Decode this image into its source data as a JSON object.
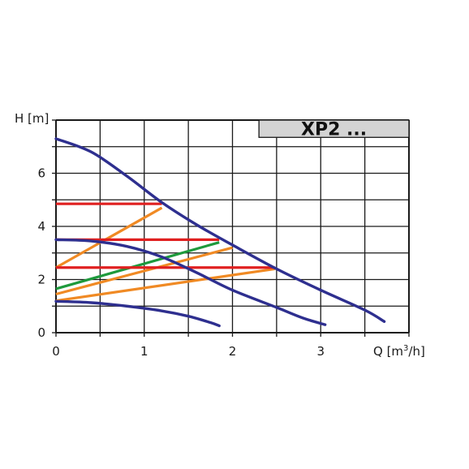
{
  "chart_data": {
    "type": "line",
    "title": "XP2 ...",
    "xlabel_prefix": "Q [m",
    "xlabel_sup": "3",
    "xlabel_suffix": "/h]",
    "ylabel": "H [m]",
    "xlim": [
      0,
      4
    ],
    "ylim": [
      0,
      8
    ],
    "x_grid_step": 0.5,
    "y_grid_step": 1,
    "grid": true,
    "x_ticks": [
      {
        "value": 0,
        "label": "0"
      },
      {
        "value": 1,
        "label": "1"
      },
      {
        "value": 2,
        "label": "2"
      },
      {
        "value": 3,
        "label": "3"
      }
    ],
    "y_ticks": [
      {
        "value": 0,
        "label": "0"
      },
      {
        "value": 2,
        "label": "2"
      },
      {
        "value": 4,
        "label": "4"
      },
      {
        "value": 6,
        "label": "6"
      }
    ],
    "colors": {
      "pump_curve": "#2e2f8f",
      "constant_pressure": "#e02020",
      "proportional_pressure": "#f08a24",
      "auto_curve": "#1e9a3c",
      "grid": "#1a1a1a",
      "title_box": "#d4d4d4"
    },
    "series": [
      {
        "kind": "pump_curve",
        "points": [
          [
            0,
            7.3
          ],
          [
            0.4,
            6.8
          ],
          [
            0.8,
            5.9
          ],
          [
            1.2,
            4.9
          ],
          [
            1.6,
            4.05
          ],
          [
            2.0,
            3.3
          ],
          [
            2.5,
            2.4
          ],
          [
            3.0,
            1.6
          ],
          [
            3.5,
            0.85
          ],
          [
            3.72,
            0.42
          ]
        ]
      },
      {
        "kind": "pump_curve",
        "points": [
          [
            0,
            3.5
          ],
          [
            0.4,
            3.45
          ],
          [
            0.8,
            3.25
          ],
          [
            1.2,
            2.85
          ],
          [
            1.6,
            2.25
          ],
          [
            2.0,
            1.6
          ],
          [
            2.5,
            0.95
          ],
          [
            2.8,
            0.55
          ],
          [
            3.05,
            0.3
          ]
        ]
      },
      {
        "kind": "pump_curve",
        "points": [
          [
            0,
            1.18
          ],
          [
            0.4,
            1.13
          ],
          [
            0.8,
            1.0
          ],
          [
            1.2,
            0.82
          ],
          [
            1.5,
            0.62
          ],
          [
            1.75,
            0.38
          ],
          [
            1.85,
            0.26
          ]
        ]
      },
      {
        "kind": "constant_pressure",
        "points": [
          [
            0,
            4.85
          ],
          [
            1.2,
            4.85
          ]
        ]
      },
      {
        "kind": "constant_pressure",
        "points": [
          [
            0,
            3.5
          ],
          [
            1.85,
            3.5
          ]
        ]
      },
      {
        "kind": "constant_pressure",
        "points": [
          [
            0,
            2.45
          ],
          [
            2.48,
            2.45
          ]
        ]
      },
      {
        "kind": "proportional_pressure",
        "points": [
          [
            0,
            2.45
          ],
          [
            1.2,
            4.7
          ]
        ]
      },
      {
        "kind": "proportional_pressure",
        "points": [
          [
            0,
            1.45
          ],
          [
            2.0,
            3.2
          ]
        ]
      },
      {
        "kind": "proportional_pressure",
        "points": [
          [
            0,
            1.2
          ],
          [
            2.48,
            2.4
          ]
        ]
      },
      {
        "kind": "auto_curve",
        "points": [
          [
            0,
            1.65
          ],
          [
            1.85,
            3.4
          ]
        ]
      }
    ]
  }
}
